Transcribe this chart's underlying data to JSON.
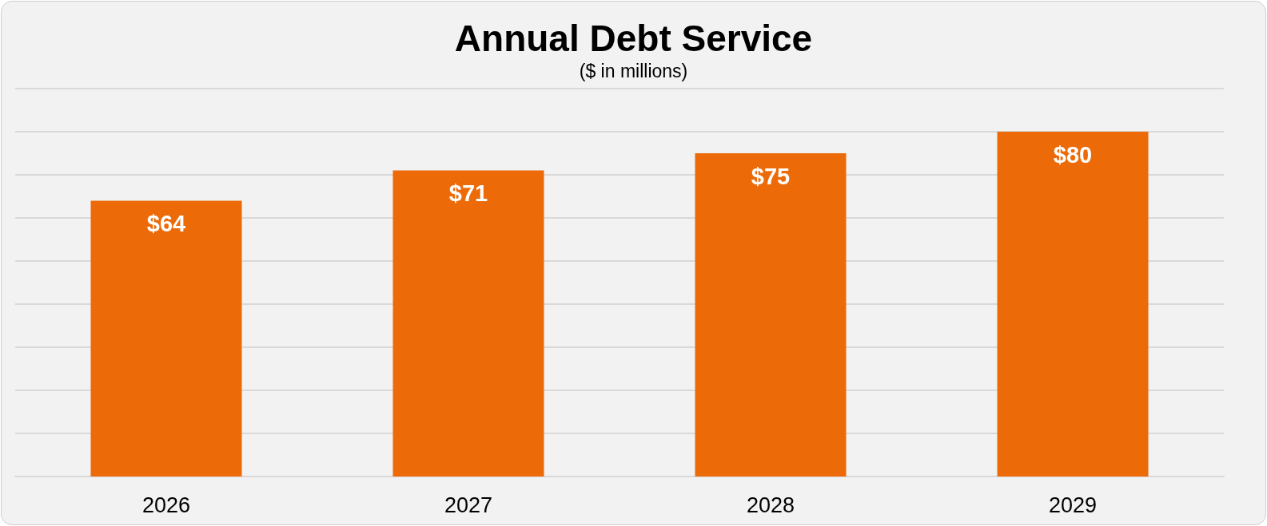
{
  "chart_data": {
    "type": "bar",
    "title": "Annual Debt Service",
    "subtitle": "($ in millions)",
    "categories": [
      "2026",
      "2027",
      "2028",
      "2029"
    ],
    "values": [
      64,
      71,
      75,
      80
    ],
    "value_labels": [
      "$64",
      "$71",
      "$75",
      "$80"
    ],
    "color": "#ec6a08",
    "ylim": [
      0,
      90
    ],
    "yticks": [
      {
        "value": 0,
        "label": null
      },
      {
        "value": 10,
        "label": null
      },
      {
        "value": 20,
        "label": null
      },
      {
        "value": 30,
        "label": null
      },
      {
        "value": 40,
        "label": null
      },
      {
        "value": 50,
        "label": null
      },
      {
        "value": 60,
        "label": null
      },
      {
        "value": 70,
        "label": null
      },
      {
        "value": 80,
        "label": null
      },
      {
        "value": 90,
        "label": null
      }
    ],
    "grid": "y",
    "tick_labels": "x"
  }
}
